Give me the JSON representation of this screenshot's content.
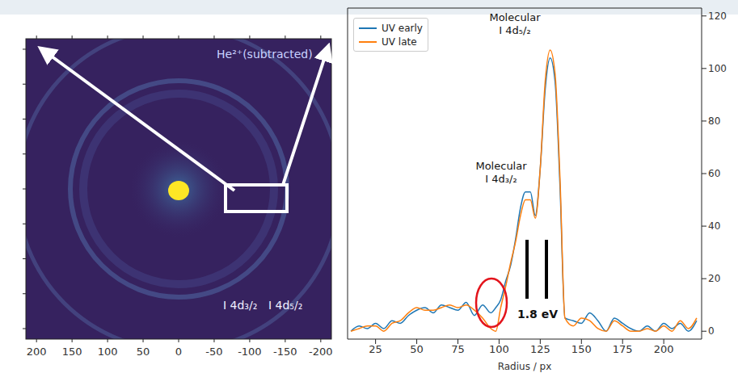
{
  "chart_data": [
    {
      "type": "image",
      "xlim": [
        215,
        -215
      ],
      "xticks": [
        200,
        150,
        100,
        50,
        0,
        -50,
        -100,
        -150,
        -200
      ],
      "ylim": [
        215,
        -215
      ],
      "yticks": [
        200,
        150,
        100,
        50,
        0,
        -50,
        -100,
        -150,
        -200
      ],
      "tick_labels": "x",
      "annotations": [
        {
          "text": "He²⁺(subtracted)"
        },
        {
          "text": "I 4d₃/₂"
        },
        {
          "text": "I 4d₅/₂"
        }
      ]
    },
    {
      "type": "line",
      "x": [
        10,
        15,
        20,
        25,
        30,
        35,
        40,
        45,
        50,
        55,
        60,
        65,
        70,
        75,
        80,
        85,
        90,
        95,
        98,
        101,
        104,
        107,
        110,
        113,
        116,
        119,
        122,
        125,
        128,
        131,
        134,
        137,
        140,
        145,
        150,
        155,
        160,
        165,
        170,
        175,
        180,
        185,
        190,
        195,
        200,
        205,
        210,
        215,
        220
      ],
      "series": [
        {
          "name": "UV early",
          "color": "#1f77b4",
          "line_style": "solid",
          "values": [
            0,
            2,
            1,
            3,
            1,
            4,
            3,
            6,
            8,
            9,
            7,
            10,
            9,
            8,
            11,
            6,
            10,
            7,
            9,
            12,
            19,
            25,
            35,
            47,
            53,
            53,
            44,
            62,
            92,
            104,
            95,
            55,
            5,
            4,
            3,
            7,
            4,
            0,
            5,
            3,
            1,
            0,
            2,
            0,
            3,
            1,
            3,
            0,
            4
          ]
        },
        {
          "name": "UV late",
          "color": "#ff7f0e",
          "line_style": "solid",
          "values": [
            0,
            1,
            2,
            2,
            0,
            3,
            4,
            7,
            9,
            8,
            8,
            9,
            10,
            9,
            10,
            8,
            5,
            1,
            0,
            9,
            17,
            26,
            34,
            44,
            50,
            50,
            43,
            62,
            95,
            107,
            98,
            58,
            5,
            2,
            5,
            4,
            1,
            0,
            4,
            2,
            0,
            0,
            1,
            0,
            2,
            0,
            4,
            1,
            5
          ]
        }
      ],
      "xlim": [
        8,
        223
      ],
      "xticks": [
        25,
        50,
        75,
        100,
        125,
        150,
        175,
        200
      ],
      "ylim": [
        -3,
        123
      ],
      "yticks": [
        0,
        20,
        40,
        60,
        80,
        100,
        120
      ],
      "x_label": "Radius / px",
      "legend": "upper left",
      "annotations": [
        {
          "text": "Molecular\nI 4d₅/₂"
        },
        {
          "text": "Molecular\nI 4d₃/₂"
        },
        {
          "text": "1.8 eV"
        }
      ]
    }
  ]
}
